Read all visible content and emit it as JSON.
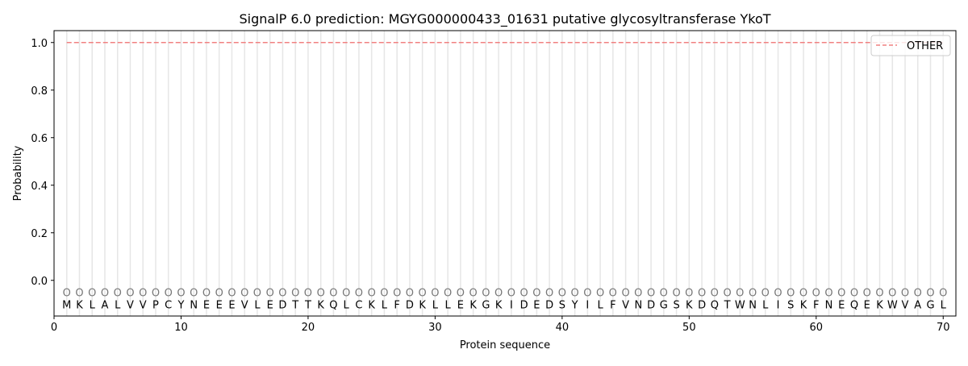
{
  "chart_data": {
    "type": "line",
    "title": "SignalP 6.0 prediction: MGYG000000433_01631 putative glycosyltransferase YkoT",
    "xlabel": "Protein sequence",
    "ylabel": "Probability",
    "xlim": [
      0,
      71
    ],
    "ylim": [
      -0.15,
      1.05
    ],
    "xticks": [
      0,
      10,
      20,
      30,
      40,
      50,
      60,
      70
    ],
    "yticks": [
      0.0,
      0.2,
      0.4,
      0.6,
      0.8,
      1.0
    ],
    "ytick_labels": [
      "0.0",
      "0.2",
      "0.4",
      "0.6",
      "0.8",
      "1.0"
    ],
    "legend_position": "top-right",
    "series": [
      {
        "name": "OTHER",
        "color": "#f08080",
        "style": "dashed",
        "x": [
          1,
          70
        ],
        "y": [
          1.0,
          1.0
        ]
      }
    ],
    "sequence": [
      "M",
      "K",
      "L",
      "A",
      "L",
      "V",
      "V",
      "P",
      "C",
      "Y",
      "N",
      "E",
      "E",
      "E",
      "V",
      "L",
      "E",
      "D",
      "T",
      "T",
      "K",
      "Q",
      "L",
      "C",
      "K",
      "L",
      "F",
      "D",
      "K",
      "L",
      "L",
      "E",
      "K",
      "G",
      "K",
      "I",
      "D",
      "E",
      "D",
      "S",
      "Y",
      "I",
      "L",
      "F",
      "V",
      "N",
      "D",
      "G",
      "S",
      "K",
      "D",
      "Q",
      "T",
      "W",
      "N",
      "L",
      "I",
      "S",
      "K",
      "F",
      "N",
      "E",
      "Q",
      "E",
      "K",
      "W",
      "V",
      "A",
      "G",
      "L"
    ],
    "predicted_labels": "OOOOOOOOOOOOOOOOOOOOOOOOOOOOOOOOOOOOOOOOOOOOOOOOOOOOOOOOOOOOOOOOOOOOOO"
  }
}
